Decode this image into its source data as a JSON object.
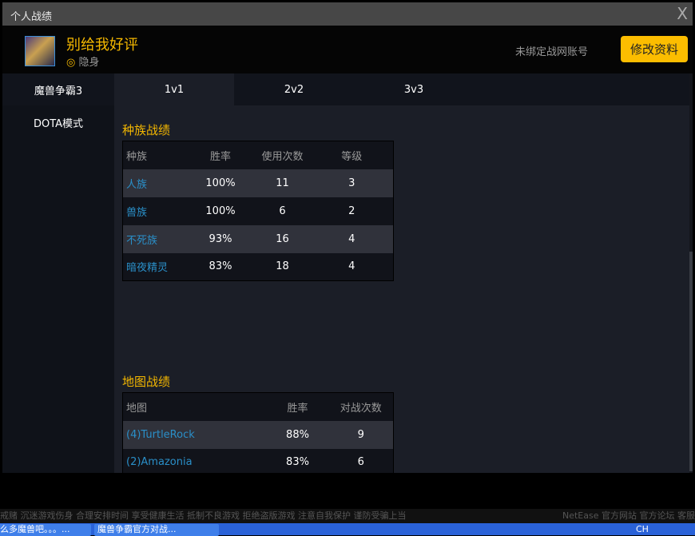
{
  "window": {
    "title": "个人战绩",
    "close": "X"
  },
  "profile": {
    "name": "别给我好评",
    "status_icon": "◎",
    "status": "隐身",
    "bind": "未绑定战网账号",
    "edit": "修改资料"
  },
  "sidebar": [
    "魔兽争霸3",
    "DOTA模式"
  ],
  "tabs": [
    "1v1",
    "2v2",
    "3v3"
  ],
  "race": {
    "title": "种族战绩",
    "headers": [
      "种族",
      "胜率",
      "使用次数",
      "等级"
    ],
    "rows": [
      [
        "人族",
        "100%",
        "11",
        "3"
      ],
      [
        "兽族",
        "100%",
        "6",
        "2"
      ],
      [
        "不死族",
        "93%",
        "16",
        "4"
      ],
      [
        "暗夜精灵",
        "83%",
        "18",
        "4"
      ]
    ]
  },
  "maps": {
    "title": "地图战绩",
    "headers": [
      "地图",
      "胜率",
      "对战次数"
    ],
    "rows": [
      [
        "(4)TurtleRock",
        "88%",
        "9"
      ],
      [
        "(2)Amazonia",
        "83%",
        "6"
      ]
    ]
  },
  "notice": "戒赌 沉迷游戏伤身 合理安排时间 享受健康生活 抵制不良游戏 拒绝盗版游戏 注意自我保护 谨防受骗上当",
  "footer_links": "NetEase 官方网站 官方论坛 客服",
  "taskbar": {
    "items": [
      "么多魔兽吧。。。...",
      "魔兽争霸官方对战..."
    ],
    "ime": "CH"
  },
  "colors": {
    "accent": "#fcbd00",
    "link": "#2a8fc8"
  }
}
